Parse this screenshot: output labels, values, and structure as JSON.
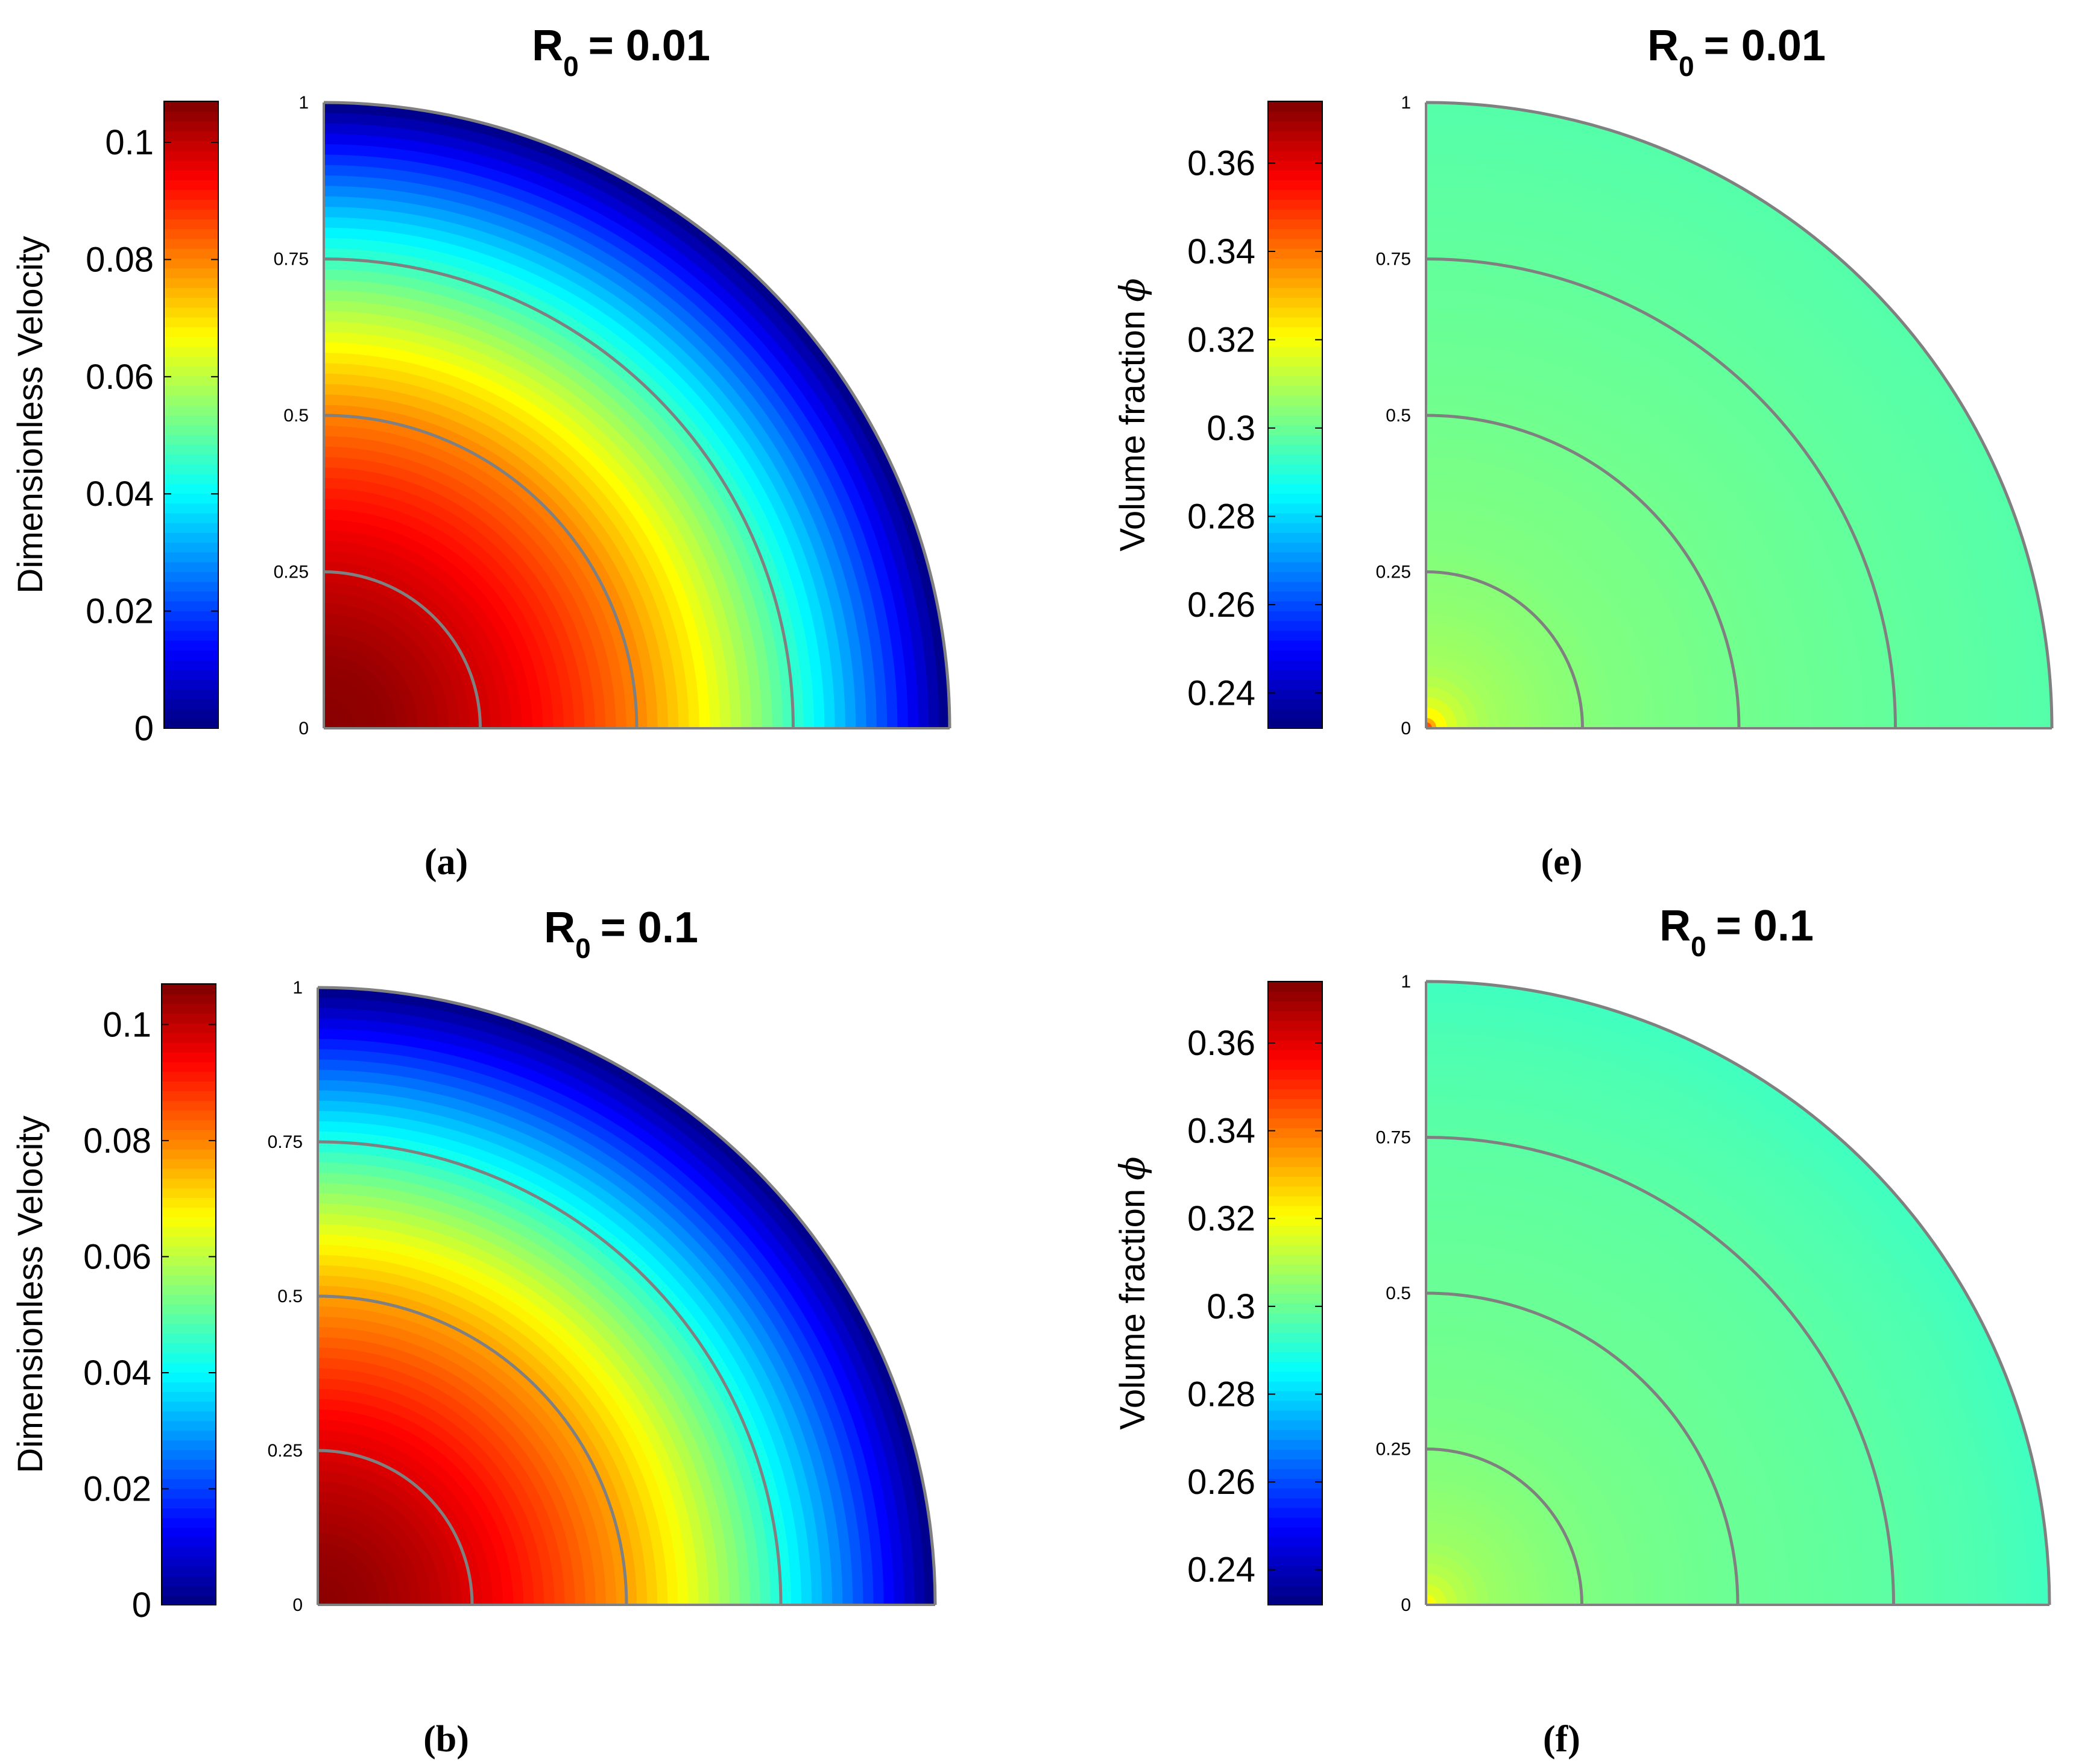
{
  "chart_data": [
    {
      "type": "heatmap",
      "subtype": "polar-quarter-contour",
      "panel_label": "(a)",
      "title": "R",
      "title_subscript": "0",
      "title_value": "= 0.01",
      "colorbar": {
        "label": "Dimensionless Velocity",
        "ticks": [
          "0",
          "0.02",
          "0.04",
          "0.06",
          "0.08",
          "0.1"
        ],
        "tick_values": [
          0,
          0.02,
          0.04,
          0.06,
          0.08,
          0.1
        ],
        "range": [
          0,
          0.107
        ],
        "colormap": "jet"
      },
      "radial_ticks": [
        "0",
        "0.25",
        "0.5",
        "0.75",
        "1"
      ],
      "radial_tick_values": [
        0,
        0.25,
        0.5,
        0.75,
        1
      ],
      "radius_range": [
        0,
        1
      ],
      "profile": {
        "r": [
          0,
          0.1,
          0.2,
          0.3,
          0.4,
          0.5,
          0.6,
          0.7,
          0.8,
          0.9,
          1.0
        ],
        "value": [
          0.106,
          0.105,
          0.101,
          0.096,
          0.089,
          0.08,
          0.068,
          0.054,
          0.038,
          0.02,
          0.0
        ]
      }
    },
    {
      "type": "heatmap",
      "subtype": "polar-quarter-contour",
      "panel_label": "(e)",
      "title": "R",
      "title_subscript": "0",
      "title_value": "= 0.01",
      "colorbar": {
        "label": "Volume fraction",
        "label_symbol": "ϕ",
        "ticks": [
          "0.24",
          "0.26",
          "0.28",
          "0.3",
          "0.32",
          "0.34",
          "0.36"
        ],
        "tick_values": [
          0.24,
          0.26,
          0.28,
          0.3,
          0.32,
          0.34,
          0.36
        ],
        "range": [
          0.232,
          0.374
        ],
        "colormap": "jet"
      },
      "radial_ticks": [
        "0",
        "0.25",
        "0.5",
        "0.75",
        "1"
      ],
      "radial_tick_values": [
        0,
        0.25,
        0.5,
        0.75,
        1
      ],
      "radius_range": [
        0,
        1
      ],
      "profile": {
        "r": [
          0,
          0.01,
          0.03,
          0.06,
          0.1,
          0.2,
          0.3,
          0.5,
          0.75,
          1.0
        ],
        "value": [
          0.345,
          0.33,
          0.318,
          0.312,
          0.308,
          0.305,
          0.303,
          0.301,
          0.299,
          0.297
        ]
      }
    },
    {
      "type": "heatmap",
      "subtype": "polar-quarter-contour",
      "panel_label": "(b)",
      "title": "R",
      "title_subscript": "0",
      "title_value": "= 0.1",
      "colorbar": {
        "label": "Dimensionless Velocity",
        "ticks": [
          "0",
          "0.02",
          "0.04",
          "0.06",
          "0.08",
          "0.1"
        ],
        "tick_values": [
          0,
          0.02,
          0.04,
          0.06,
          0.08,
          0.1
        ],
        "range": [
          0,
          0.107
        ],
        "colormap": "jet"
      },
      "radial_ticks": [
        "0",
        "0.25",
        "0.5",
        "0.75",
        "1"
      ],
      "radial_tick_values": [
        0,
        0.25,
        0.5,
        0.75,
        1
      ],
      "radius_range": [
        0,
        1
      ],
      "profile": {
        "r": [
          0,
          0.1,
          0.2,
          0.3,
          0.4,
          0.5,
          0.6,
          0.7,
          0.8,
          0.9,
          1.0
        ],
        "value": [
          0.106,
          0.104,
          0.1,
          0.094,
          0.086,
          0.077,
          0.065,
          0.051,
          0.035,
          0.018,
          0.0
        ]
      }
    },
    {
      "type": "heatmap",
      "subtype": "polar-quarter-contour",
      "panel_label": "(f)",
      "title": "R",
      "title_subscript": "0",
      "title_value": "= 0.1",
      "colorbar": {
        "label": "Volume fraction",
        "label_symbol": "ϕ",
        "ticks": [
          "0.24",
          "0.26",
          "0.28",
          "0.3",
          "0.32",
          "0.34",
          "0.36"
        ],
        "tick_values": [
          0.24,
          0.26,
          0.28,
          0.3,
          0.32,
          0.34,
          0.36
        ],
        "range": [
          0.232,
          0.374
        ],
        "colormap": "jet"
      },
      "radial_ticks": [
        "0",
        "0.25",
        "0.5",
        "0.75",
        "1"
      ],
      "radial_tick_values": [
        0,
        0.25,
        0.5,
        0.75,
        1
      ],
      "radius_range": [
        0,
        1
      ],
      "profile": {
        "r": [
          0,
          0.02,
          0.05,
          0.1,
          0.2,
          0.3,
          0.5,
          0.75,
          0.9,
          1.0
        ],
        "value": [
          0.322,
          0.316,
          0.311,
          0.307,
          0.304,
          0.302,
          0.3,
          0.298,
          0.296,
          0.294
        ]
      }
    }
  ],
  "colors": {
    "ring_stroke": "#808080",
    "text": "#000000",
    "background": "#ffffff"
  }
}
